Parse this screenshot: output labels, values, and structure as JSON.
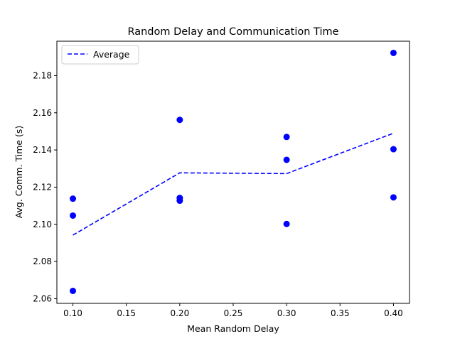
{
  "chart_data": {
    "type": "scatter",
    "title": "Random Delay and Communication Time",
    "xlabel": "Mean Random Delay",
    "ylabel": "Avg. Comm. Time (s)",
    "xlim": [
      0.085,
      0.415
    ],
    "ylim": [
      2.0575,
      2.1985
    ],
    "xticks": [
      "0.10",
      "0.15",
      "0.20",
      "0.25",
      "0.30",
      "0.35",
      "0.40"
    ],
    "xtick_values": [
      0.1,
      0.15,
      0.2,
      0.25,
      0.3,
      0.35,
      0.4
    ],
    "yticks": [
      "2.06",
      "2.08",
      "2.10",
      "2.12",
      "2.14",
      "2.16",
      "2.18"
    ],
    "ytick_values": [
      2.06,
      2.08,
      2.1,
      2.12,
      2.14,
      2.16,
      2.18
    ],
    "grid": false,
    "legend_position": "upper-left",
    "points": {
      "color": "#0000ff",
      "values": [
        {
          "x": 0.1,
          "y": 2.1138
        },
        {
          "x": 0.1,
          "y": 2.1047
        },
        {
          "x": 0.1,
          "y": 2.0642
        },
        {
          "x": 0.2,
          "y": 2.1562
        },
        {
          "x": 0.2,
          "y": 2.1142
        },
        {
          "x": 0.2,
          "y": 2.1127
        },
        {
          "x": 0.3,
          "y": 2.147
        },
        {
          "x": 0.3,
          "y": 2.1347
        },
        {
          "x": 0.3,
          "y": 2.1002
        },
        {
          "x": 0.4,
          "y": 2.1922
        },
        {
          "x": 0.4,
          "y": 2.1404
        },
        {
          "x": 0.4,
          "y": 2.1145
        }
      ]
    },
    "series": [
      {
        "name": "Average",
        "style": "dashed",
        "color": "#0000ff",
        "x": [
          0.1,
          0.2,
          0.3,
          0.4
        ],
        "y": [
          2.0942,
          2.1277,
          2.1273,
          2.149
        ]
      }
    ]
  }
}
